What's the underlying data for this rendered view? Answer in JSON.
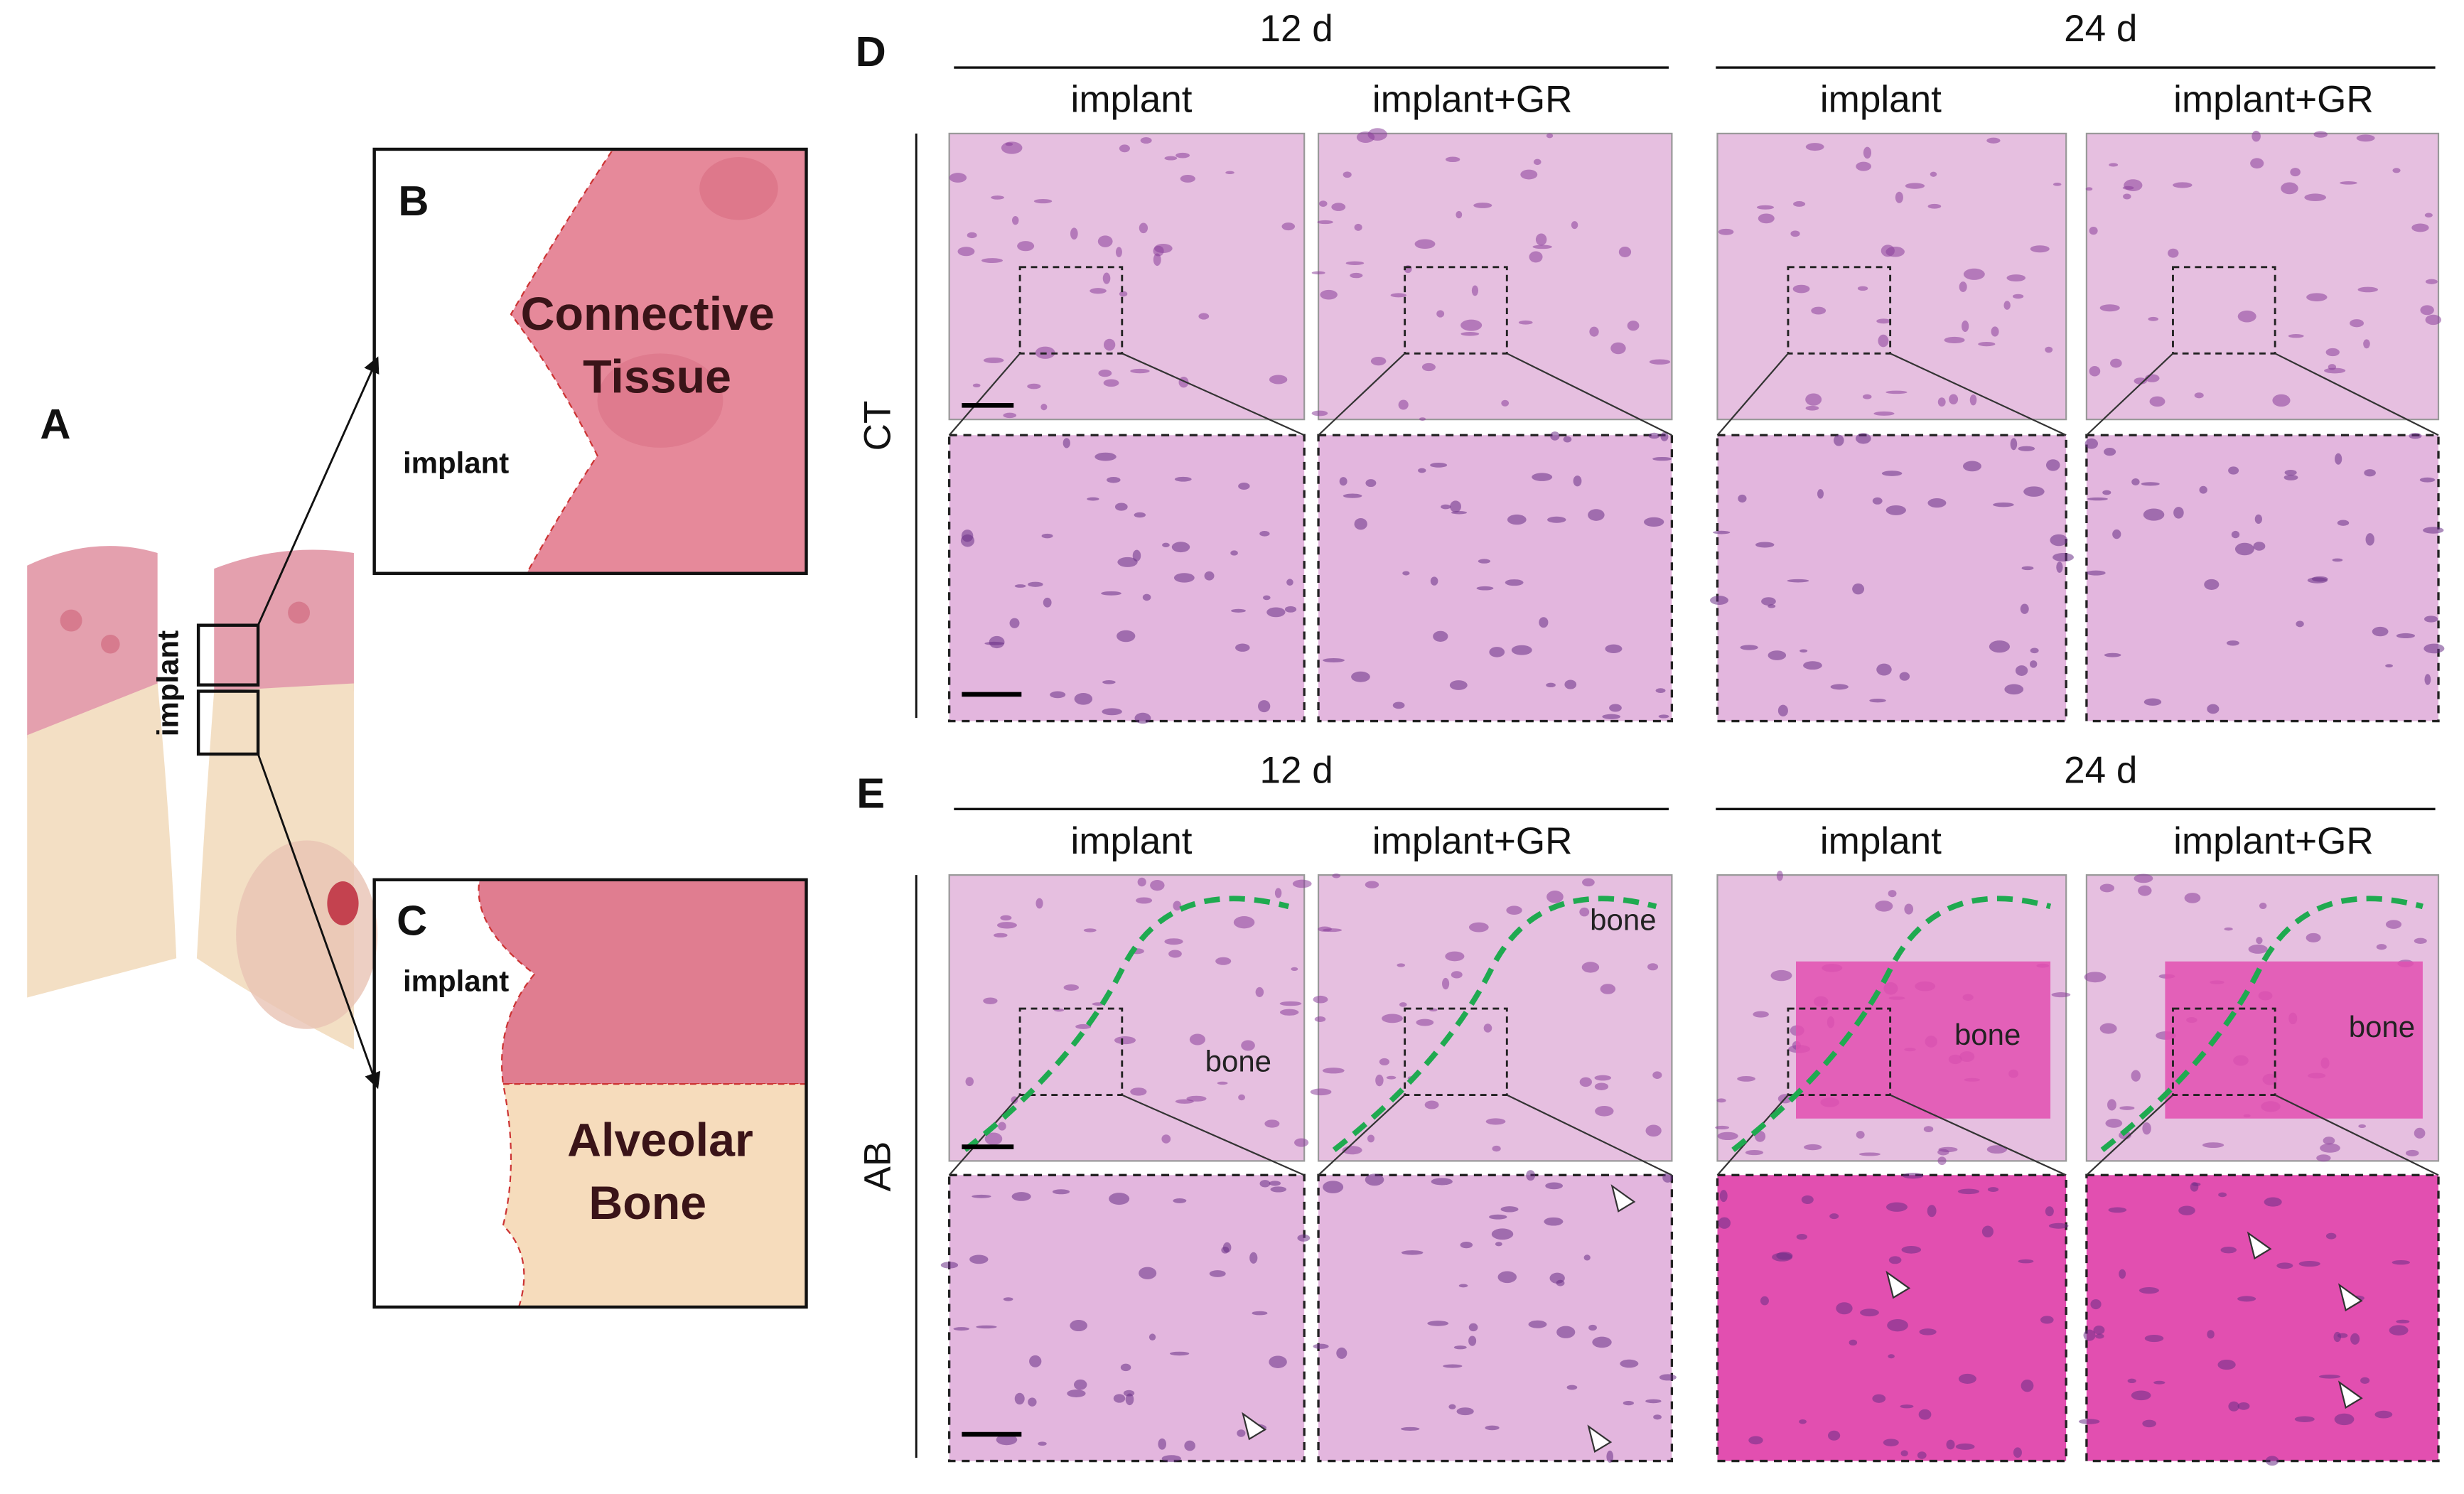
{
  "panels": {
    "a": {
      "label": "A",
      "implant_label": "implant"
    },
    "b": {
      "label": "B",
      "tissue_lines": [
        "Connective",
        "Tissue"
      ],
      "implant_label": "implant"
    },
    "c": {
      "label": "C",
      "tissue_lines": [
        "Alveolar",
        "Bone"
      ],
      "implant_label": "implant"
    }
  },
  "histology": {
    "d": {
      "label": "D",
      "row_label": "CT",
      "timepoints": [
        {
          "label": "12 d",
          "groups": [
            "implant",
            "implant+GR"
          ]
        },
        {
          "label": "24 d",
          "groups": [
            "implant",
            "implant+GR"
          ]
        }
      ]
    },
    "e": {
      "label": "E",
      "row_label": "AB",
      "timepoints": [
        {
          "label": "12 d",
          "groups": [
            "implant",
            "implant+GR"
          ]
        },
        {
          "label": "24 d",
          "groups": [
            "implant",
            "implant+GR"
          ]
        }
      ],
      "bone_labels": [
        "bone",
        "bone",
        "bone",
        "bone"
      ]
    }
  }
}
